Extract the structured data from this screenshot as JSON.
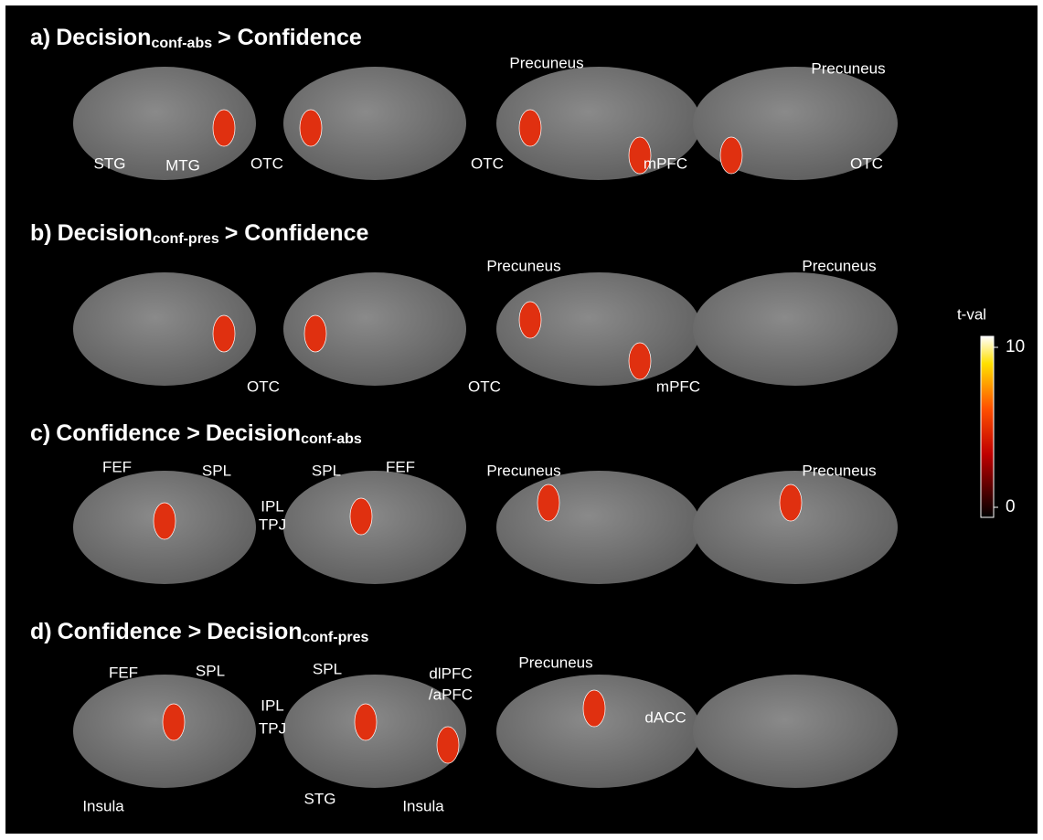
{
  "panels": [
    {
      "letter": "a)",
      "title": "Decision",
      "subscript": "conf-abs",
      "title_rest": "> Confidence",
      "labels": [
        "STG",
        "MTG",
        "OTC",
        "Precuneus",
        "Precuneus",
        "OTC",
        "mPFC",
        "OTC"
      ]
    },
    {
      "letter": "b)",
      "title": "Decision",
      "subscript": "conf-pres",
      "title_rest": "> Confidence",
      "labels": [
        "OTC",
        "Precuneus",
        "Precuneus",
        "OTC",
        "mPFC"
      ]
    },
    {
      "letter": "c)",
      "title": "Confidence >",
      "subscript": "",
      "title_rest": "Decision",
      "title_sub2": "conf-abs",
      "labels": [
        "FEF",
        "SPL",
        "IPL",
        "TPJ",
        "SPL",
        "FEF",
        "Precuneus",
        "Precuneus"
      ]
    },
    {
      "letter": "d)",
      "title": "Confidence >",
      "subscript": "",
      "title_rest": "Decision",
      "title_sub2": "conf-pres",
      "labels": [
        "FEF",
        "SPL",
        "SPL",
        "IPL",
        "TPJ",
        "dlPFC",
        "/aPFC",
        "Precuneus",
        "dACC",
        "Insula",
        "STG",
        "Insula"
      ]
    }
  ],
  "colorbar": {
    "label": "t-val",
    "ticks": [
      10,
      0
    ]
  }
}
